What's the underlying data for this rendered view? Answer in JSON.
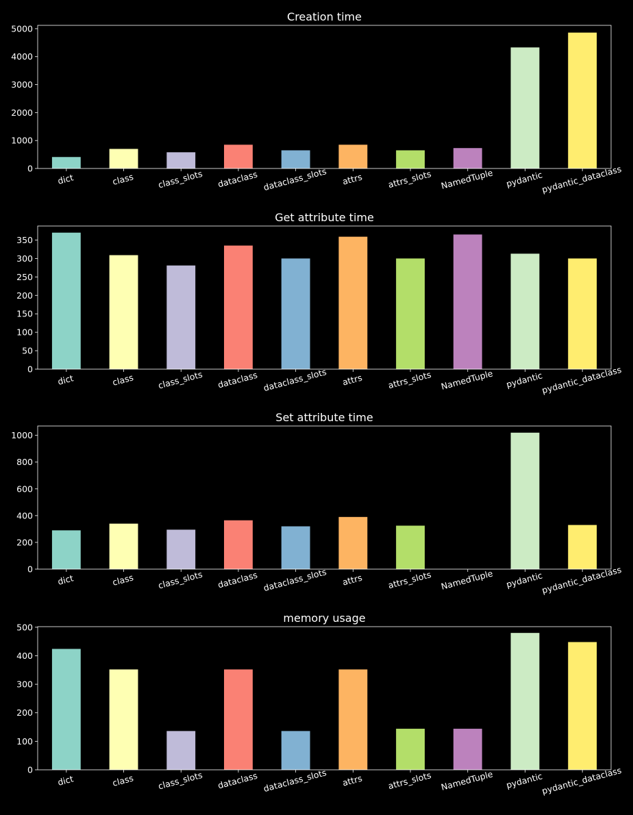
{
  "chart_data": [
    {
      "type": "bar",
      "title": "Creation time",
      "categories": [
        "dict",
        "class",
        "class_slots",
        "dataclass",
        "dataclass_slots",
        "attrs",
        "attrs_slots",
        "NamedTuple",
        "pydantic",
        "pydantic_dataclass"
      ],
      "values": [
        410,
        700,
        580,
        850,
        650,
        850,
        650,
        730,
        4330,
        4860
      ],
      "ylim": [
        0,
        5120
      ],
      "yticks": [
        0,
        1000,
        2000,
        3000,
        4000,
        5000
      ],
      "grid": false,
      "colors": [
        "#8dd3c7",
        "#feffb3",
        "#bfbbd9",
        "#fa8174",
        "#81b1d2",
        "#fdb462",
        "#b3de69",
        "#bc82bd",
        "#ccebc4",
        "#ffed6f"
      ]
    },
    {
      "type": "bar",
      "title": "Get attribute time",
      "categories": [
        "dict",
        "class",
        "class_slots",
        "dataclass",
        "dataclass_slots",
        "attrs",
        "attrs_slots",
        "NamedTuple",
        "pydantic",
        "pydantic_dataclass"
      ],
      "values": [
        370,
        309,
        281,
        335,
        300,
        359,
        300,
        365,
        313,
        300
      ],
      "ylim": [
        0,
        388
      ],
      "yticks": [
        0,
        50,
        100,
        150,
        200,
        250,
        300,
        350
      ],
      "grid": false,
      "colors": [
        "#8dd3c7",
        "#feffb3",
        "#bfbbd9",
        "#fa8174",
        "#81b1d2",
        "#fdb462",
        "#b3de69",
        "#bc82bd",
        "#ccebc4",
        "#ffed6f"
      ]
    },
    {
      "type": "bar",
      "title": "Set attribute time",
      "categories": [
        "dict",
        "class",
        "class_slots",
        "dataclass",
        "dataclass_slots",
        "attrs",
        "attrs_slots",
        "NamedTuple",
        "pydantic",
        "pydantic_dataclass"
      ],
      "values": [
        290,
        340,
        295,
        365,
        320,
        390,
        325,
        0,
        1020,
        330
      ],
      "ylim": [
        0,
        1070
      ],
      "yticks": [
        0,
        200,
        400,
        600,
        800,
        1000
      ],
      "grid": false,
      "colors": [
        "#8dd3c7",
        "#feffb3",
        "#bfbbd9",
        "#fa8174",
        "#81b1d2",
        "#fdb462",
        "#b3de69",
        "#bc82bd",
        "#ccebc4",
        "#ffed6f"
      ]
    },
    {
      "type": "bar",
      "title": "memory usage",
      "categories": [
        "dict",
        "class",
        "class_slots",
        "dataclass",
        "dataclass_slots",
        "attrs",
        "attrs_slots",
        "NamedTuple",
        "pydantic",
        "pydantic_dataclass"
      ],
      "values": [
        424,
        352,
        136,
        352,
        136,
        352,
        144,
        144,
        480,
        448
      ],
      "ylim": [
        0,
        502
      ],
      "yticks": [
        0,
        100,
        200,
        300,
        400,
        500
      ],
      "grid": false,
      "colors": [
        "#8dd3c7",
        "#feffb3",
        "#bfbbd9",
        "#fa8174",
        "#81b1d2",
        "#fdb462",
        "#b3de69",
        "#bc82bd",
        "#ccebc4",
        "#ffed6f"
      ]
    }
  ]
}
